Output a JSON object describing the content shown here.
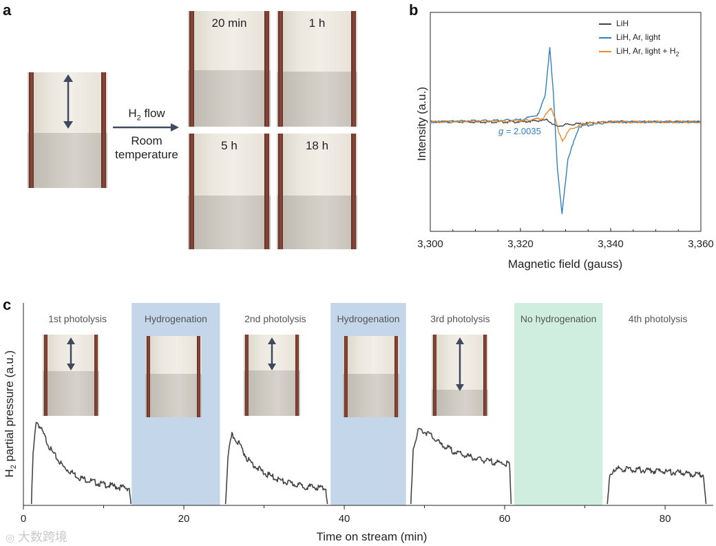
{
  "panels": {
    "a": "a",
    "b": "b",
    "c": "c"
  },
  "panel_a": {
    "arrow_label_top_h": "H",
    "arrow_label_top_sub": "2",
    "arrow_label_top_rest": " flow",
    "arrow_label_bottom_1": "Room",
    "arrow_label_bottom_2": "temperature",
    "time_labels": [
      "20 min",
      "1 h",
      "5 h",
      "18 h"
    ]
  },
  "panel_b": {
    "chart_data": {
      "type": "line",
      "title": "",
      "xlabel": "Magnetic field (gauss)",
      "ylabel": "Intensity (a.u.)",
      "xlim": [
        3300,
        3360
      ],
      "x_ticks": [
        3300,
        3320,
        3340,
        3360
      ],
      "x_tick_labels": [
        "3,300",
        "3,320",
        "3,340",
        "3,360"
      ],
      "annotation_g": "g",
      "annotation_value": " = 2.0035",
      "series": [
        {
          "name": "LiH",
          "color": "#444444",
          "x": [
            3300,
            3320,
            3326,
            3328,
            3330,
            3340,
            3360
          ],
          "y": [
            0,
            0.0,
            0.02,
            -0.05,
            -0.03,
            0.0,
            0
          ]
        },
        {
          "name": "LiH, Ar, light",
          "color": "#2f7fc0",
          "x": [
            3300,
            3320,
            3324,
            3325.5,
            3326.5,
            3327.3,
            3328.2,
            3329.2,
            3330.5,
            3333,
            3340,
            3360
          ],
          "y": [
            0,
            0.02,
            0.08,
            0.3,
            0.8,
            0.3,
            -0.5,
            -1.0,
            -0.4,
            -0.05,
            0,
            0
          ]
        },
        {
          "name": "LiH, Ar, light + H",
          "name_sub": "2",
          "color": "#ef8a2e",
          "x": [
            3300,
            3320,
            3325,
            3326.8,
            3327.6,
            3328.5,
            3329.3,
            3331,
            3334,
            3340,
            3360
          ],
          "y": [
            0,
            0.01,
            0.04,
            0.15,
            0.05,
            -0.12,
            -0.2,
            -0.08,
            -0.02,
            0,
            0
          ]
        }
      ]
    }
  },
  "panel_c": {
    "chart_data": {
      "type": "line",
      "title": "",
      "xlabel": "Time on stream (min)",
      "ylabel": "H",
      "ylabel_sub": "2",
      "ylabel_rest": " partial pressure (a.u.)",
      "xlim": [
        0,
        86
      ],
      "x_ticks": [
        0,
        20,
        40,
        60,
        80
      ],
      "phases": [
        {
          "label": "1st photolysis",
          "start": 0,
          "end": 13.5,
          "color": "#ffffff"
        },
        {
          "label": "Hydrogenation",
          "start": 13.5,
          "end": 24.5,
          "color": "#c3d6ea"
        },
        {
          "label": "2nd photolysis",
          "start": 24.5,
          "end": 38.3,
          "color": "#ffffff"
        },
        {
          "label": "Hydrogenation",
          "start": 38.3,
          "end": 47.7,
          "color": "#c3d6ea"
        },
        {
          "label": "3rd photolysis",
          "start": 47.7,
          "end": 61.2,
          "color": "#ffffff"
        },
        {
          "label": "No hydrogenation",
          "start": 61.2,
          "end": 72.2,
          "color": "#cfeee0"
        },
        {
          "label": "4th photolysis",
          "start": 72.2,
          "end": 86,
          "color": "#ffffff"
        }
      ],
      "series": [
        {
          "name": "H2 partial pressure",
          "color": "#444444",
          "segments": [
            {
              "x": [
                1,
                1.2,
                1.6,
                2.2,
                3.5,
                5,
                7,
                9.5,
                12,
                13.2,
                13.4
              ],
              "y": [
                0,
                0.55,
                0.95,
                0.85,
                0.6,
                0.42,
                0.3,
                0.23,
                0.19,
                0.18,
                0
              ]
            },
            {
              "x": [
                25.2,
                25.5,
                26,
                26.8,
                28,
                30,
                32.5,
                35,
                37.7,
                37.9
              ],
              "y": [
                0,
                0.55,
                0.78,
                0.7,
                0.5,
                0.35,
                0.25,
                0.2,
                0.18,
                0
              ]
            },
            {
              "x": [
                48.3,
                48.6,
                49.3,
                50.5,
                52,
                54,
                57,
                60.6,
                60.8
              ],
              "y": [
                0,
                0.65,
                0.85,
                0.8,
                0.68,
                0.58,
                0.5,
                0.45,
                0
              ]
            },
            {
              "x": [
                72.8,
                73.1,
                73.6,
                75,
                78,
                81,
                84.8,
                85.1
              ],
              "y": [
                0,
                0.3,
                0.4,
                0.4,
                0.38,
                0.36,
                0.33,
                0
              ]
            }
          ]
        }
      ]
    }
  },
  "watermark": "大数跨境"
}
